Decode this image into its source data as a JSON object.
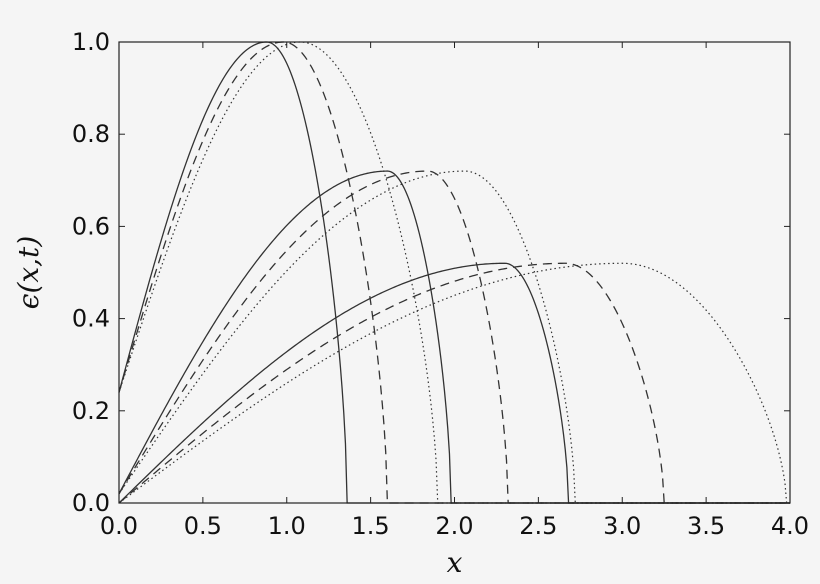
{
  "chart_data": {
    "type": "line",
    "xlabel": "x",
    "ylabel": "ϵ(x,t)",
    "xlim": [
      0,
      4
    ],
    "ylim": [
      0,
      1
    ],
    "x_ticks": [
      "0.0",
      "0.5",
      "1.0",
      "1.5",
      "2.0",
      "2.5",
      "3.0",
      "3.5",
      "4.0"
    ],
    "y_ticks": [
      "0.0",
      "0.2",
      "0.4",
      "0.6",
      "0.8",
      "1.0"
    ],
    "grid": false,
    "line_color": "#333333",
    "series": [
      {
        "style": "solid",
        "peak_x": 0.88,
        "peak_y": 1.0,
        "start_y": 0.24,
        "end_x": 1.36
      },
      {
        "style": "dashed",
        "peak_x": 0.98,
        "peak_y": 1.0,
        "start_y": 0.24,
        "end_x": 1.6
      },
      {
        "style": "dotted",
        "peak_x": 1.08,
        "peak_y": 1.0,
        "start_y": 0.24,
        "end_x": 1.9
      },
      {
        "style": "solid",
        "peak_x": 1.6,
        "peak_y": 0.72,
        "start_y": 0.02,
        "end_x": 1.98
      },
      {
        "style": "dashed",
        "peak_x": 1.84,
        "peak_y": 0.72,
        "start_y": 0.02,
        "end_x": 2.32
      },
      {
        "style": "dotted",
        "peak_x": 2.06,
        "peak_y": 0.72,
        "start_y": 0.02,
        "end_x": 2.72
      },
      {
        "style": "solid",
        "peak_x": 2.3,
        "peak_y": 0.52,
        "start_y": 0.0,
        "end_x": 2.68
      },
      {
        "style": "dashed",
        "peak_x": 2.66,
        "peak_y": 0.52,
        "start_y": 0.0,
        "end_x": 3.25
      },
      {
        "style": "dotted",
        "peak_x": 3.0,
        "peak_y": 0.52,
        "start_y": 0.0,
        "end_x": 3.98
      }
    ]
  }
}
